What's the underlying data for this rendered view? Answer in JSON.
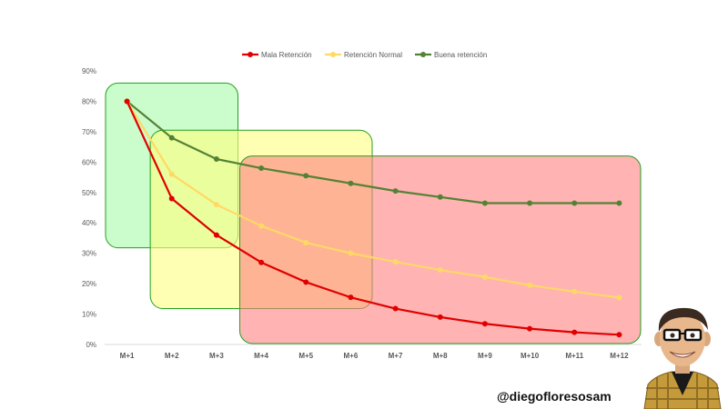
{
  "colors": {
    "mala": "#e00000",
    "normal": "#ffd966",
    "buena": "#548235",
    "box_green": "#8cf98c",
    "box_yellow": "#ffff80",
    "box_red": "#ff8080",
    "box_stroke": "#22a022",
    "axis": "#d9d9d9"
  },
  "watermark": "@diegofloresosam",
  "chart_data": {
    "type": "line",
    "categories": [
      "M+1",
      "M+2",
      "M+3",
      "M+4",
      "M+5",
      "M+6",
      "M+7",
      "M+8",
      "M+9",
      "M+10",
      "M+11",
      "M+12"
    ],
    "ylim": [
      0,
      0.9
    ],
    "yticks": [
      "0%",
      "10%",
      "20%",
      "30%",
      "40%",
      "50%",
      "60%",
      "70%",
      "80%",
      "90%"
    ],
    "grid": false,
    "legend_position": "top",
    "series": [
      {
        "name": "Mala Retención",
        "color": "#e00000",
        "values": [
          0.8,
          0.48,
          0.36,
          0.27,
          0.205,
          0.155,
          0.118,
          0.09,
          0.068,
          0.052,
          0.04,
          0.032
        ]
      },
      {
        "name": "Retención Normal",
        "color": "#ffd966",
        "values": [
          0.8,
          0.56,
          0.46,
          0.39,
          0.335,
          0.3,
          0.272,
          0.245,
          0.222,
          0.195,
          0.174,
          0.154
        ]
      },
      {
        "name": "Buena retención",
        "color": "#548235",
        "values": [
          0.8,
          0.68,
          0.61,
          0.58,
          0.555,
          0.53,
          0.505,
          0.485,
          0.465,
          0.465,
          0.465,
          0.465
        ]
      }
    ],
    "highlight_regions": [
      {
        "name": "green",
        "from": "M+1",
        "to": "M+3",
        "ylim": [
          0.315,
          0.86
        ]
      },
      {
        "name": "yellow",
        "from": "M+2",
        "to": "M+6",
        "ylim": [
          0.115,
          0.705
        ]
      },
      {
        "name": "red",
        "from": "M+4",
        "to": "M+12",
        "ylim": [
          0.0,
          0.62
        ]
      }
    ]
  }
}
